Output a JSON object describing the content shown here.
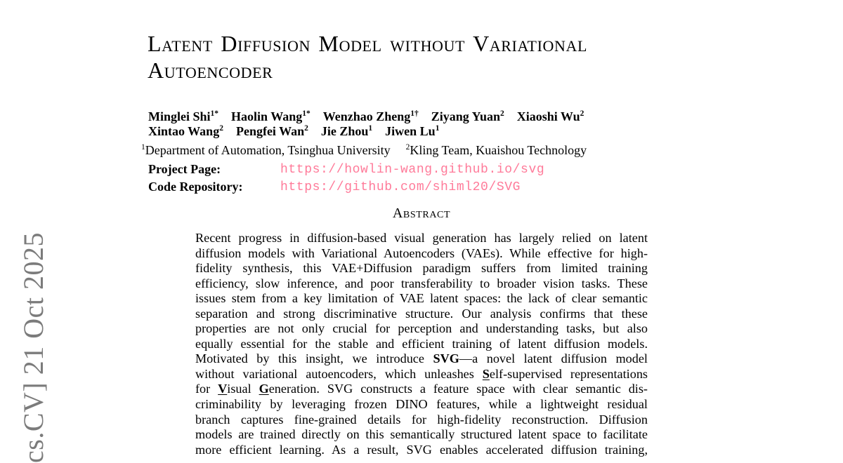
{
  "colors": {
    "link": "#ff7a99",
    "watermark": "#7b7b7b",
    "text": "#000000"
  },
  "watermark": {
    "text": "cs.CV] 21 Oct 2025"
  },
  "title": {
    "lines": [
      "Latent Diffusion Model without Variational",
      "Autoencoder"
    ]
  },
  "authors": {
    "lines": [
      [
        {
          "name": "Minglei Shi",
          "sup": "1*"
        },
        {
          "name": "Haolin Wang",
          "sup": "1*"
        },
        {
          "name": "Wenzhao Zheng",
          "sup": "1†"
        },
        {
          "name": "Ziyang Yuan",
          "sup": "2"
        },
        {
          "name": "Xiaoshi Wu",
          "sup": "2"
        }
      ],
      [
        {
          "name": "Xintao Wang",
          "sup": "2"
        },
        {
          "name": "Pengfei Wan",
          "sup": "2"
        },
        {
          "name": "Jie Zhou",
          "sup": "1"
        },
        {
          "name": "Jiwen Lu",
          "sup": "1"
        }
      ]
    ]
  },
  "affiliations": [
    {
      "sup": "1",
      "text": "Department of Automation, Tsinghua University"
    },
    {
      "sup": "2",
      "text": "Kling Team, Kuaishou Technology"
    }
  ],
  "links": [
    {
      "label": "Project Page:",
      "url": "https://howlin-wang.github.io/svg"
    },
    {
      "label": "Code Repository:",
      "url": "https://github.com/shiml20/SVG"
    }
  ],
  "abstract": {
    "heading": "Abstract",
    "lines": [
      [
        {
          "t": "Recent progress in diffusion-based visual generation has largely relied on latent"
        }
      ],
      [
        {
          "t": "diffusion models with Variational Autoencoders (VAEs). While effective for high-"
        }
      ],
      [
        {
          "t": "fidelity synthesis, this VAE+Diffusion paradigm suffers from limited training"
        }
      ],
      [
        {
          "t": "efficiency, slow inference, and poor transferability to broader vision tasks. These"
        }
      ],
      [
        {
          "t": "issues stem from a key limitation of VAE latent spaces: the lack of clear semantic"
        }
      ],
      [
        {
          "t": "separation and strong discriminative structure. Our analysis confirms that these"
        }
      ],
      [
        {
          "t": "properties are not only crucial for perception and understanding tasks, but also"
        }
      ],
      [
        {
          "t": "equally essential for the stable and efficient training of latent diffusion models."
        }
      ],
      [
        {
          "t": "Motivated by this insight, we introduce "
        },
        {
          "t": "SVG",
          "b": 1
        },
        {
          "t": "—a novel latent diffusion model"
        }
      ],
      [
        {
          "t": "without variational autoencoders, which unleashes "
        },
        {
          "t": "S",
          "b": 1,
          "u": 1
        },
        {
          "t": "elf-supervised representations"
        }
      ],
      [
        {
          "t": "for "
        },
        {
          "t": "V",
          "b": 1,
          "u": 1
        },
        {
          "t": "isual "
        },
        {
          "t": "G",
          "b": 1,
          "u": 1
        },
        {
          "t": "eneration. SVG constructs a feature space with clear semantic dis-"
        }
      ],
      [
        {
          "t": "criminability by leveraging frozen DINO features, while a lightweight residual"
        }
      ],
      [
        {
          "t": "branch captures fine-grained details for high-fidelity reconstruction. Diffusion"
        }
      ],
      [
        {
          "t": "models are trained directly on this semantically structured latent space to facilitate"
        }
      ],
      [
        {
          "t": "more efficient learning. As a result, SVG enables accelerated diffusion training,"
        }
      ]
    ]
  }
}
